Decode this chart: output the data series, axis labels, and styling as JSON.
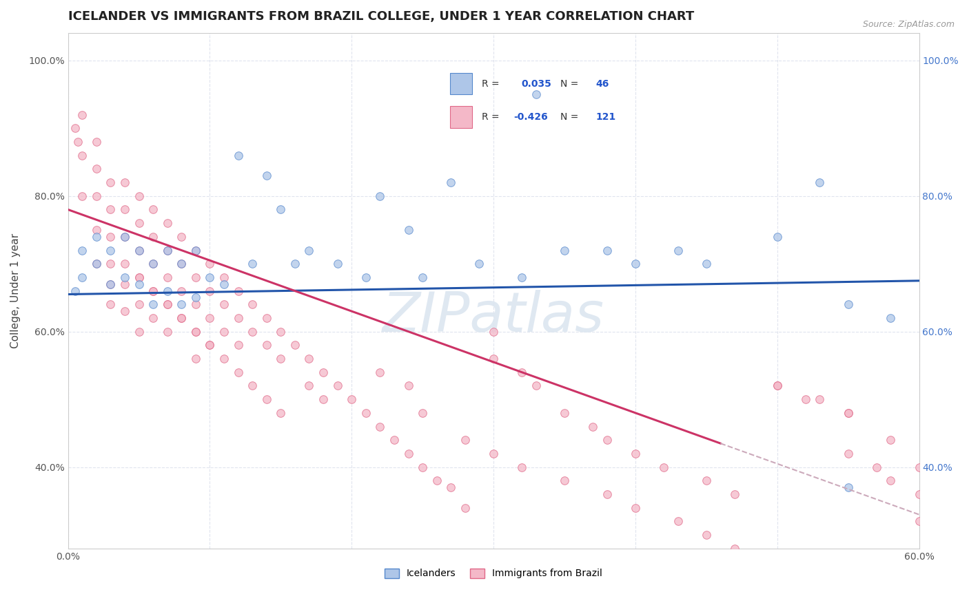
{
  "title": "ICELANDER VS IMMIGRANTS FROM BRAZIL COLLEGE, UNDER 1 YEAR CORRELATION CHART",
  "source": "Source: ZipAtlas.com",
  "ylabel": "College, Under 1 year",
  "legend_label1": "Icelanders",
  "legend_label2": "Immigrants from Brazil",
  "R1": 0.035,
  "N1": 46,
  "R2": -0.426,
  "N2": 121,
  "xlim": [
    0.0,
    0.6
  ],
  "ylim": [
    0.28,
    1.04
  ],
  "color_blue_fill": "#aec6e8",
  "color_blue_edge": "#5588cc",
  "color_pink_fill": "#f4b8c8",
  "color_pink_edge": "#e06888",
  "color_trendline_blue": "#2255aa",
  "color_trendline_pink": "#cc3366",
  "color_dashed": "#ccaabb",
  "watermark_color": "#dce6f0",
  "background_color": "#ffffff",
  "grid_color": "#e0e4ee",
  "blue_x": [
    0.005,
    0.01,
    0.01,
    0.02,
    0.02,
    0.03,
    0.03,
    0.04,
    0.04,
    0.05,
    0.05,
    0.06,
    0.06,
    0.07,
    0.07,
    0.08,
    0.08,
    0.09,
    0.09,
    0.1,
    0.11,
    0.12,
    0.13,
    0.14,
    0.15,
    0.16,
    0.17,
    0.19,
    0.21,
    0.22,
    0.24,
    0.25,
    0.27,
    0.29,
    0.32,
    0.33,
    0.35,
    0.38,
    0.4,
    0.43,
    0.45,
    0.5,
    0.53,
    0.55,
    0.55,
    0.58
  ],
  "blue_y": [
    0.66,
    0.68,
    0.72,
    0.7,
    0.74,
    0.67,
    0.72,
    0.68,
    0.74,
    0.67,
    0.72,
    0.64,
    0.7,
    0.66,
    0.72,
    0.64,
    0.7,
    0.65,
    0.72,
    0.68,
    0.67,
    0.86,
    0.7,
    0.83,
    0.78,
    0.7,
    0.72,
    0.7,
    0.68,
    0.8,
    0.75,
    0.68,
    0.82,
    0.7,
    0.68,
    0.95,
    0.72,
    0.72,
    0.7,
    0.72,
    0.7,
    0.74,
    0.82,
    0.37,
    0.64,
    0.62
  ],
  "pink_x": [
    0.005,
    0.007,
    0.01,
    0.01,
    0.01,
    0.02,
    0.02,
    0.02,
    0.02,
    0.02,
    0.03,
    0.03,
    0.03,
    0.03,
    0.03,
    0.03,
    0.04,
    0.04,
    0.04,
    0.04,
    0.04,
    0.04,
    0.05,
    0.05,
    0.05,
    0.05,
    0.05,
    0.05,
    0.06,
    0.06,
    0.06,
    0.06,
    0.06,
    0.07,
    0.07,
    0.07,
    0.07,
    0.07,
    0.08,
    0.08,
    0.08,
    0.08,
    0.09,
    0.09,
    0.09,
    0.09,
    0.09,
    0.1,
    0.1,
    0.1,
    0.1,
    0.11,
    0.11,
    0.11,
    0.12,
    0.12,
    0.12,
    0.13,
    0.13,
    0.14,
    0.14,
    0.15,
    0.15,
    0.16,
    0.17,
    0.17,
    0.18,
    0.18,
    0.19,
    0.2,
    0.21,
    0.22,
    0.23,
    0.24,
    0.25,
    0.26,
    0.27,
    0.28,
    0.3,
    0.3,
    0.32,
    0.33,
    0.35,
    0.37,
    0.38,
    0.4,
    0.42,
    0.45,
    0.47,
    0.5,
    0.53,
    0.55,
    0.55,
    0.57,
    0.58,
    0.6,
    0.6,
    0.22,
    0.24,
    0.25,
    0.28,
    0.3,
    0.32,
    0.35,
    0.38,
    0.4,
    0.43,
    0.45,
    0.47,
    0.5,
    0.52,
    0.55,
    0.58,
    0.6,
    0.05,
    0.06,
    0.07,
    0.08,
    0.09,
    0.1,
    0.11,
    0.12,
    0.13,
    0.14,
    0.15
  ],
  "pink_y": [
    0.9,
    0.88,
    0.92,
    0.86,
    0.8,
    0.88,
    0.84,
    0.8,
    0.75,
    0.7,
    0.82,
    0.78,
    0.74,
    0.7,
    0.67,
    0.64,
    0.82,
    0.78,
    0.74,
    0.7,
    0.67,
    0.63,
    0.8,
    0.76,
    0.72,
    0.68,
    0.64,
    0.6,
    0.78,
    0.74,
    0.7,
    0.66,
    0.62,
    0.76,
    0.72,
    0.68,
    0.64,
    0.6,
    0.74,
    0.7,
    0.66,
    0.62,
    0.72,
    0.68,
    0.64,
    0.6,
    0.56,
    0.7,
    0.66,
    0.62,
    0.58,
    0.68,
    0.64,
    0.6,
    0.66,
    0.62,
    0.58,
    0.64,
    0.6,
    0.62,
    0.58,
    0.6,
    0.56,
    0.58,
    0.56,
    0.52,
    0.54,
    0.5,
    0.52,
    0.5,
    0.48,
    0.46,
    0.44,
    0.42,
    0.4,
    0.38,
    0.37,
    0.34,
    0.6,
    0.56,
    0.54,
    0.52,
    0.48,
    0.46,
    0.44,
    0.42,
    0.4,
    0.38,
    0.36,
    0.52,
    0.5,
    0.48,
    0.42,
    0.4,
    0.38,
    0.36,
    0.32,
    0.54,
    0.52,
    0.48,
    0.44,
    0.42,
    0.4,
    0.38,
    0.36,
    0.34,
    0.32,
    0.3,
    0.28,
    0.52,
    0.5,
    0.48,
    0.44,
    0.4,
    0.68,
    0.66,
    0.64,
    0.62,
    0.6,
    0.58,
    0.56,
    0.54,
    0.52,
    0.5,
    0.48
  ],
  "trendline_blue_x0": 0.0,
  "trendline_blue_x1": 0.6,
  "trendline_blue_y0": 0.655,
  "trendline_blue_y1": 0.675,
  "trendline_pink_solid_x0": 0.0,
  "trendline_pink_solid_x1": 0.46,
  "trendline_pink_solid_y0": 0.78,
  "trendline_pink_solid_y1": 0.435,
  "trendline_pink_dash_x0": 0.46,
  "trendline_pink_dash_x1": 0.6,
  "trendline_pink_dash_y0": 0.435,
  "trendline_pink_dash_y1": 0.33
}
